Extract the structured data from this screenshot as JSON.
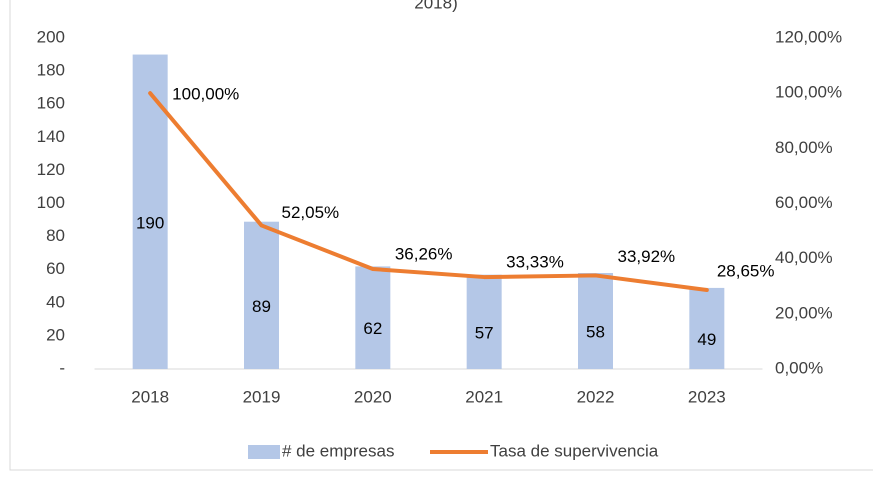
{
  "chart_data": {
    "type": "bar-line",
    "title": "2018)",
    "categories": [
      "2018",
      "2019",
      "2020",
      "2021",
      "2022",
      "2023"
    ],
    "series": [
      {
        "name": "# de empresas",
        "color": "#b4c7e7",
        "values": [
          190,
          89,
          62,
          57,
          58,
          49
        ]
      },
      {
        "name": "Tasa de supervivencia",
        "color": "#ed7d31",
        "axis": "y2",
        "values": [
          100,
          52.05,
          36.26,
          33.33,
          33.92,
          28.65
        ],
        "value_labels": [
          "100,00%",
          "52,05%",
          "36,26%",
          "33,33%",
          "33,92%",
          "28,65%"
        ]
      }
    ],
    "ylim": [
      0,
      200
    ],
    "yticks": [
      {
        "value": 0,
        "label": "-"
      },
      20,
      40,
      60,
      80,
      100,
      120,
      140,
      160,
      180,
      200
    ],
    "y2lim": [
      0,
      120
    ],
    "y2ticks": [
      {
        "value": 0,
        "label": "0,00%"
      },
      {
        "value": 20,
        "label": "20,00%"
      },
      {
        "value": 40,
        "label": "40,00%"
      },
      {
        "value": 60,
        "label": "60,00%"
      },
      {
        "value": 80,
        "label": "80,00%"
      },
      {
        "value": 100,
        "label": "100,00%"
      },
      {
        "value": 120,
        "label": "120,00%"
      }
    ],
    "legend": "bottom"
  }
}
